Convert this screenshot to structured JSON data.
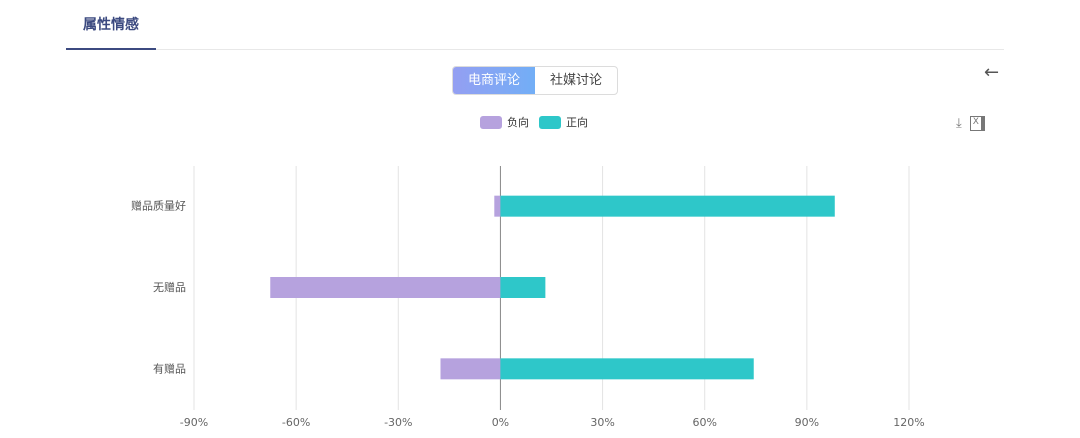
{
  "tab": "属性情感",
  "segments": [
    {
      "label": "电商评论",
      "active": true
    },
    {
      "label": "社媒讨论",
      "active": false
    }
  ],
  "icons": {
    "back": "arrow-left-icon",
    "download": "download-icon",
    "excel": "excel-export-icon"
  },
  "chart_data": {
    "type": "bar",
    "orientation": "horizontal",
    "stacked": "diverging",
    "categories": [
      "赠品质量好",
      "无赠品",
      "有赠品"
    ],
    "series": [
      {
        "name": "负向",
        "color": "#b6a2de",
        "values": [
          -1.8,
          -67.6,
          -17.6
        ]
      },
      {
        "name": "正向",
        "color": "#2ec7c9",
        "values": [
          98.2,
          13.2,
          74.4
        ]
      }
    ],
    "xlim": [
      -90,
      120
    ],
    "xticks": [
      -90,
      -60,
      -30,
      0,
      30,
      60,
      90,
      120
    ],
    "tick_labels": [
      "-90%",
      "-60%",
      "-30%",
      "0%",
      "30%",
      "60%",
      "90%",
      "120%"
    ],
    "legend": "top-center",
    "grid": true
  }
}
